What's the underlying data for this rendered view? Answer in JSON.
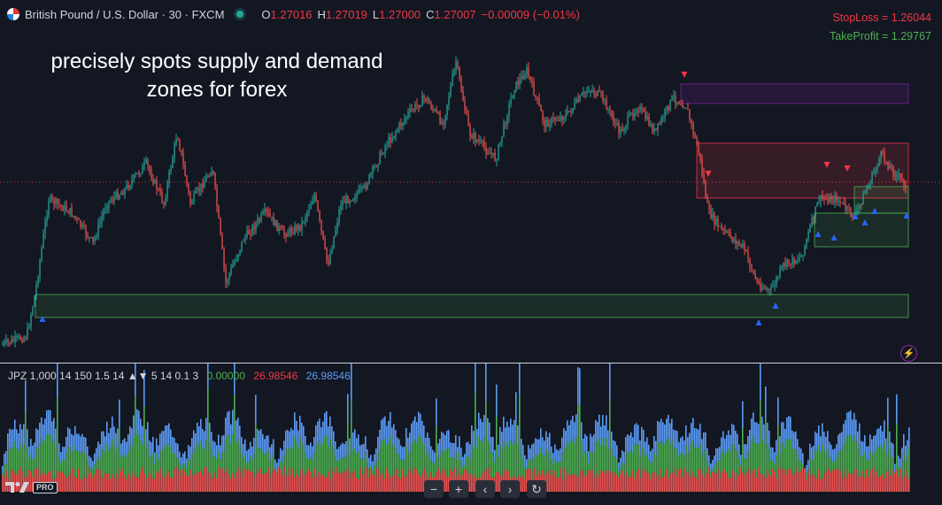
{
  "header": {
    "symbol": "British Pound / U.S. Dollar · 30 · FXCM",
    "open_key": "O",
    "open": "1.27016",
    "high_key": "H",
    "high": "1.27019",
    "low_key": "L",
    "low": "1.27000",
    "close_key": "C",
    "close": "1.27007",
    "change": "−0.00009 (−0.01%)"
  },
  "levels": {
    "stop_loss": "StopLoss = 1.26044",
    "take_profit": "TakeProfit = 1.29767"
  },
  "overlay_text": {
    "line1": "precisely spots supply and demand",
    "line2": "zones for forex"
  },
  "indicator": {
    "label": "JPZ 1,000 14 150 1.5 14 ▲▼ 5 14 0.1 3",
    "value1": "0.00000",
    "value2": "26.98546",
    "value3": "26.98546"
  },
  "branding": {
    "logo": "TV",
    "badge": "PRO"
  },
  "nav": {
    "zoom_out": "−",
    "zoom_in": "+",
    "back": "‹",
    "forward": "›",
    "reset": "↻"
  },
  "colors": {
    "background": "#131722",
    "up": "#26a69a",
    "down": "#ef5350",
    "supply_zone": "#f23645",
    "demand_zone": "#4caf50",
    "purple_zone": "#7b1fa2",
    "buy_marker": "#2962ff",
    "sell_marker": "#f23645",
    "hist_red": "#ef5350",
    "hist_green": "#4caf50",
    "hist_blue": "#5b9cf6"
  }
}
